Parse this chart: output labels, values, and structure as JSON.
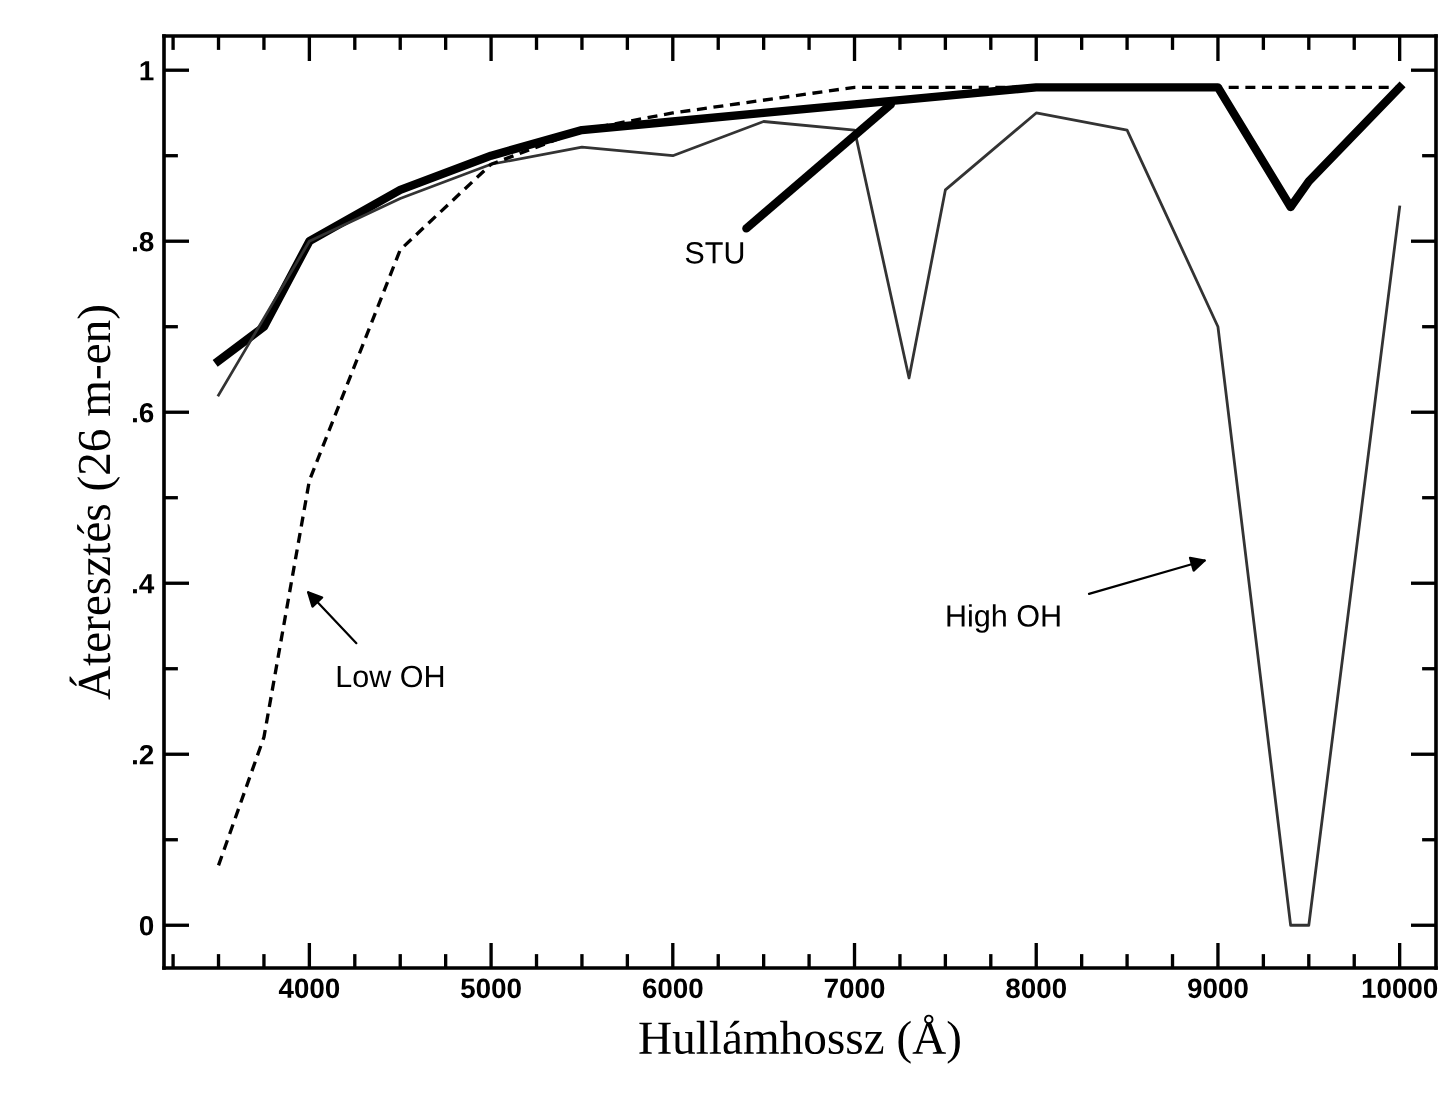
{
  "chart_data": {
    "type": "line",
    "xlabel": "Hullámhossz (Å)",
    "ylabel": "Áteresztés (26 m-en)",
    "xlim": [
      3200,
      10200
    ],
    "ylim": [
      -0.05,
      1.04
    ],
    "xticks": [
      4000,
      5000,
      6000,
      7000,
      8000,
      9000,
      10000
    ],
    "yticks": [
      {
        "value": 0,
        "label": "0"
      },
      {
        "value": 0.2,
        "label": ".2"
      },
      {
        "value": 0.4,
        "label": ".4"
      },
      {
        "value": 0.6,
        "label": ".6"
      },
      {
        "value": 0.8,
        "label": ".8"
      },
      {
        "value": 1,
        "label": "1"
      }
    ],
    "grid": false,
    "legend": false,
    "series": [
      {
        "color": "#000000",
        "line_style": "solid",
        "x": [
          3500,
          3750,
          4000,
          4500,
          5000,
          5500,
          6000,
          6500,
          7000,
          7500,
          8000,
          9000,
          9400,
          9500,
          10000
        ],
        "values": [
          0.66,
          0.7,
          0.8,
          0.86,
          0.9,
          0.93,
          0.94,
          0.95,
          0.96,
          0.97,
          0.98,
          0.98,
          0.84,
          0.87,
          0.98
        ]
      },
      {
        "color": "#333333",
        "line_style": "solid",
        "x": [
          3500,
          3750,
          4000,
          4500,
          5000,
          5500,
          6000,
          6500,
          7000,
          7300,
          7500,
          8000,
          8500,
          9000,
          9400,
          9500,
          10000
        ],
        "values": [
          0.62,
          0.71,
          0.8,
          0.85,
          0.89,
          0.91,
          0.9,
          0.94,
          0.93,
          0.64,
          0.86,
          0.95,
          0.93,
          0.7,
          0.0,
          0.0,
          0.84
        ]
      },
      {
        "color": "#000000",
        "line_style": "dashed",
        "x": [
          3500,
          3750,
          4000,
          4500,
          5000,
          5500,
          6000,
          7000,
          10000
        ],
        "values": [
          0.07,
          0.22,
          0.52,
          0.79,
          0.89,
          0.93,
          0.95,
          0.98,
          0.98
        ]
      }
    ],
    "annotations": [
      {
        "text": "STU",
        "x": 7200,
        "y": 0.96
      },
      "Low OH",
      "High OH"
    ]
  }
}
